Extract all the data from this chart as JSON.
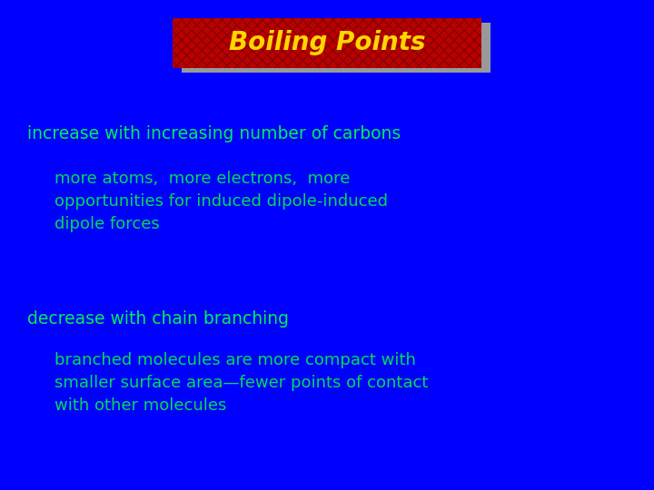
{
  "background_color": "#0000FF",
  "title_text": "Boiling Points",
  "title_box_color": "#BB0000",
  "title_text_color": "#FFD700",
  "shadow_color": "#999999",
  "bullet1_text": "increase with increasing number of carbons",
  "bullet1_color": "#00EE55",
  "sub1_text": "more atoms,  more electrons,  more\nopportunities for induced dipole-induced\ndipole forces",
  "sub1_color": "#00DD55",
  "bullet2_text": "decrease with chain branching",
  "bullet2_color": "#00EE55",
  "sub2_text": "branched molecules are more compact with\nsmaller surface area—fewer points of contact\nwith other molecules",
  "sub2_color": "#00DD55",
  "fig_width": 7.2,
  "fig_height": 5.4,
  "dpi": 100
}
